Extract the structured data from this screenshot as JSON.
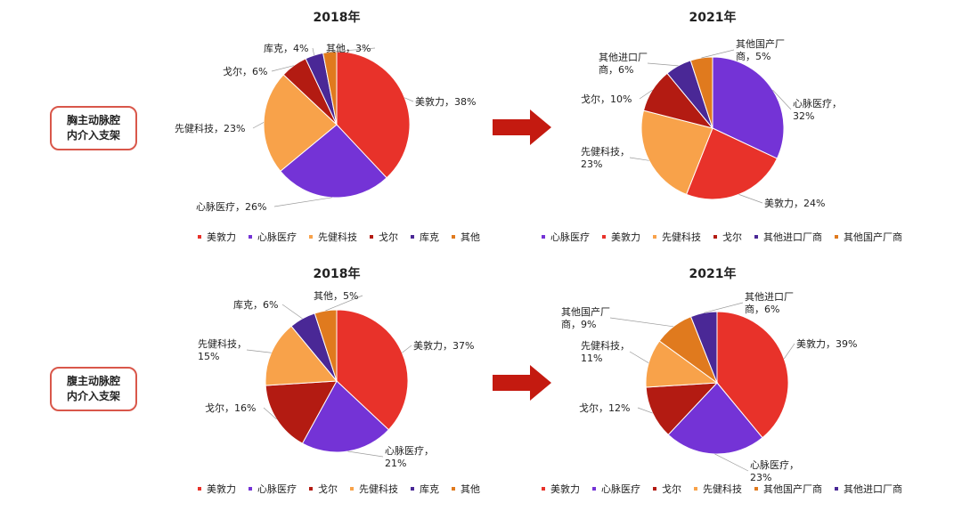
{
  "row_labels": [
    [
      "胸主动脉腔",
      "内介入支架"
    ],
    [
      "腹主动脉腔",
      "内介入支架"
    ]
  ],
  "colors": {
    "美敦力": "#e8322a",
    "心脉医疗": "#7433d6",
    "先健科技": "#f8a24a",
    "戈尔": "#b31b12",
    "库克": "#4a2896",
    "其他": "#e07a1e",
    "其他进口厂商": "#4a2896",
    "其他国产厂商": "#e07a1e",
    "arrow": "#c41a10"
  },
  "chart_data": [
    {
      "type": "pie",
      "title": "2018年",
      "slices": [
        {
          "label": "美敦力",
          "value": 38,
          "text": [
            "美敦力，38%"
          ]
        },
        {
          "label": "心脉医疗",
          "value": 26,
          "text": [
            "心脉医疗，26%"
          ]
        },
        {
          "label": "先健科技",
          "value": 23,
          "text": [
            "先健科技，23%"
          ]
        },
        {
          "label": "戈尔",
          "value": 6,
          "text": [
            "戈尔，6%"
          ]
        },
        {
          "label": "库克",
          "value": 4,
          "text": [
            "库克，4%"
          ]
        },
        {
          "label": "其他",
          "value": 3,
          "text": [
            "其他，3%"
          ]
        }
      ],
      "legend": [
        "美敦力",
        "心脉医疗",
        "先健科技",
        "戈尔",
        "库克",
        "其他"
      ]
    },
    {
      "type": "pie",
      "title": "2021年",
      "slices": [
        {
          "label": "心脉医疗",
          "value": 32,
          "text": [
            "心脉医疗，",
            "32%"
          ]
        },
        {
          "label": "美敦力",
          "value": 24,
          "text": [
            "美敦力，24%"
          ]
        },
        {
          "label": "先健科技",
          "value": 23,
          "text": [
            "先健科技，",
            "23%"
          ]
        },
        {
          "label": "戈尔",
          "value": 10,
          "text": [
            "戈尔，10%"
          ]
        },
        {
          "label": "其他进口厂商",
          "value": 6,
          "text": [
            "其他进口厂",
            "商，6%"
          ]
        },
        {
          "label": "其他国产厂商",
          "value": 5,
          "text": [
            "其他国产厂",
            "商，5%"
          ]
        }
      ],
      "legend": [
        "心脉医疗",
        "美敦力",
        "先健科技",
        "戈尔",
        "其他进口厂商",
        "其他国产厂商"
      ]
    },
    {
      "type": "pie",
      "title": "2018年",
      "slices": [
        {
          "label": "美敦力",
          "value": 37,
          "text": [
            "美敦力，37%"
          ]
        },
        {
          "label": "心脉医疗",
          "value": 21,
          "text": [
            "心脉医疗，",
            "21%"
          ]
        },
        {
          "label": "戈尔",
          "value": 16,
          "text": [
            "戈尔，16%"
          ]
        },
        {
          "label": "先健科技",
          "value": 15,
          "text": [
            "先健科技，",
            "15%"
          ]
        },
        {
          "label": "库克",
          "value": 6,
          "text": [
            "库克，6%"
          ]
        },
        {
          "label": "其他",
          "value": 5,
          "text": [
            "其他，5%"
          ]
        }
      ],
      "legend": [
        "美敦力",
        "心脉医疗",
        "戈尔",
        "先健科技",
        "库克",
        "其他"
      ]
    },
    {
      "type": "pie",
      "title": "2021年",
      "slices": [
        {
          "label": "美敦力",
          "value": 39,
          "text": [
            "美敦力，39%"
          ]
        },
        {
          "label": "心脉医疗",
          "value": 23,
          "text": [
            "心脉医疗，",
            "23%"
          ]
        },
        {
          "label": "戈尔",
          "value": 12,
          "text": [
            "戈尔，12%"
          ]
        },
        {
          "label": "先健科技",
          "value": 11,
          "text": [
            "先健科技，",
            "11%"
          ]
        },
        {
          "label": "其他国产厂商",
          "value": 9,
          "text": [
            "其他国产厂",
            "商，9%"
          ]
        },
        {
          "label": "其他进口厂商",
          "value": 6,
          "text": [
            "其他进口厂",
            "商，6%"
          ]
        }
      ],
      "legend": [
        "美敦力",
        "心脉医疗",
        "戈尔",
        "先健科技",
        "其他国产厂商",
        "其他进口厂商"
      ]
    }
  ]
}
